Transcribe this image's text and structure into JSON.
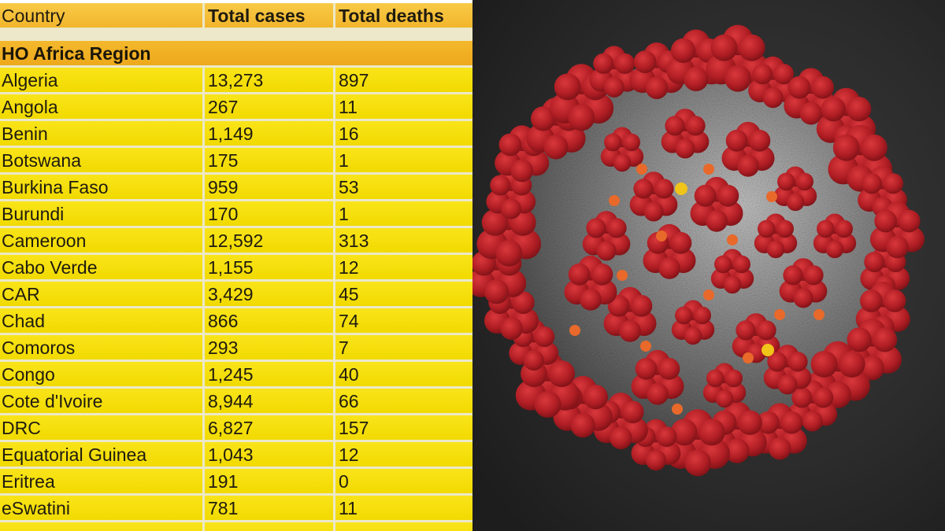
{
  "table": {
    "headers": [
      "Country",
      "Total cases",
      "Total deaths"
    ],
    "region_label": "HO Africa Region",
    "rows": [
      [
        "Algeria",
        "13,273",
        "897"
      ],
      [
        "Angola",
        "267",
        "11"
      ],
      [
        "Benin",
        "1,149",
        "16"
      ],
      [
        "Botswana",
        "175",
        "1"
      ],
      [
        "Burkina Faso",
        "959",
        "53"
      ],
      [
        "Burundi",
        "170",
        "1"
      ],
      [
        "Cameroon",
        "12,592",
        "313"
      ],
      [
        "Cabo Verde",
        "1,155",
        "12"
      ],
      [
        "CAR",
        "3,429",
        "45"
      ],
      [
        "Chad",
        "866",
        "74"
      ],
      [
        "Comoros",
        "293",
        "7"
      ],
      [
        "Congo",
        "1,245",
        "40"
      ],
      [
        "Cote d'Ivoire",
        "8,944",
        "66"
      ],
      [
        "DRC",
        "6,827",
        "157"
      ],
      [
        "Equatorial Guinea",
        "1,043",
        "12"
      ],
      [
        "Eritrea",
        "191",
        "0"
      ],
      [
        "eSwatini",
        "781",
        "11"
      ]
    ],
    "colors": {
      "header": "#f4bd3a",
      "region": "#f1ae22",
      "cell": "#f5df0c",
      "grid": "#ece8c9"
    }
  },
  "illustration": {
    "subject": "coronavirus-particle",
    "colors": {
      "background": "#2a2a2a",
      "surface": "#8a8a8a",
      "spike": "#b01e24",
      "protein_orange": "#e8692a",
      "protein_yellow": "#f0c419"
    }
  }
}
